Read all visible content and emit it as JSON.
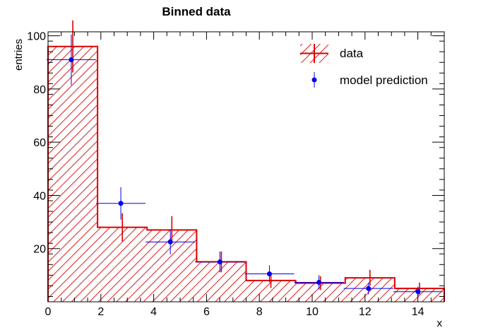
{
  "chart_data": {
    "type": "bar",
    "title": "Binned data",
    "xlabel": "x",
    "ylabel": "entries",
    "xlim": [
      0,
      15
    ],
    "ylim": [
      0,
      101.5
    ],
    "xticks": [
      0,
      2,
      4,
      6,
      8,
      10,
      12,
      14
    ],
    "yticks": [
      20,
      40,
      60,
      80,
      100
    ],
    "grid": false,
    "legend_position": "top-right",
    "bin_edges": [
      0,
      1.875,
      3.75,
      5.625,
      7.5,
      9.375,
      11.25,
      13.125,
      15
    ],
    "series": [
      {
        "name": "data",
        "style": "hatched-histogram",
        "color": "#dd0000",
        "values": [
          96,
          28,
          27,
          15,
          8,
          7,
          9,
          5
        ],
        "errors": [
          9.8,
          5.3,
          5.2,
          3.9,
          2.8,
          2.6,
          3.0,
          2.2
        ]
      },
      {
        "name": "model prediction",
        "style": "markers",
        "color": "#0000ee",
        "values": [
          91,
          37,
          22.5,
          15,
          10.5,
          7.3,
          5,
          3.8
        ],
        "errors": [
          9.5,
          6.1,
          4.7,
          3.9,
          3.2,
          2.7,
          2.2,
          1.9
        ]
      }
    ]
  }
}
